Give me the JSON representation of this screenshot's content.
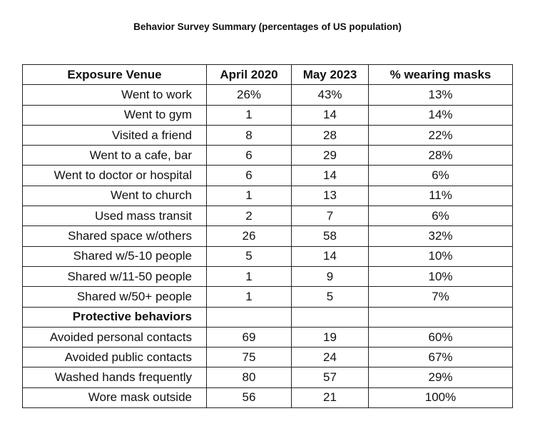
{
  "title": "Behavior Survey Summary (percentages of US population)",
  "columns": [
    "Exposure Venue",
    "April 2020",
    "May 2023",
    "% wearing masks"
  ],
  "rows": [
    {
      "label": "Went to work",
      "april_2020": "26%",
      "may_2023": "43%",
      "masks": "13%"
    },
    {
      "label": "Went to gym",
      "april_2020": "1",
      "may_2023": "14",
      "masks": "14%"
    },
    {
      "label": "Visited a friend",
      "april_2020": "8",
      "may_2023": "28",
      "masks": "22%"
    },
    {
      "label": "Went to a cafe, bar",
      "april_2020": "6",
      "may_2023": "29",
      "masks": "28%"
    },
    {
      "label": "Went to doctor or hospital",
      "april_2020": "6",
      "may_2023": "14",
      "masks": "6%"
    },
    {
      "label": "Went to church",
      "april_2020": "1",
      "may_2023": "13",
      "masks": "11%"
    },
    {
      "label": "Used mass transit",
      "april_2020": "2",
      "may_2023": "7",
      "masks": "6%"
    },
    {
      "label": "Shared space w/others",
      "april_2020": "26",
      "may_2023": "58",
      "masks": "32%"
    },
    {
      "label": "Shared w/5-10 people",
      "april_2020": "5",
      "may_2023": "14",
      "masks": "10%"
    },
    {
      "label": "Shared w/11-50 people",
      "april_2020": "1",
      "may_2023": "9",
      "masks": "10%"
    },
    {
      "label": "Shared w/50+ people",
      "april_2020": "1",
      "may_2023": "5",
      "masks": "7%"
    },
    {
      "label": "Protective behaviors",
      "section": true,
      "april_2020": "",
      "may_2023": "",
      "masks": ""
    },
    {
      "label": "Avoided personal contacts",
      "april_2020": "69",
      "may_2023": "19",
      "masks": "60%"
    },
    {
      "label": "Avoided public contacts",
      "april_2020": "75",
      "may_2023": "24",
      "masks": "67%"
    },
    {
      "label": "Washed hands frequently",
      "april_2020": "80",
      "may_2023": "57",
      "masks": "29%"
    },
    {
      "label": "Wore mask outside",
      "april_2020": "56",
      "may_2023": "21",
      "masks": "100%"
    }
  ]
}
